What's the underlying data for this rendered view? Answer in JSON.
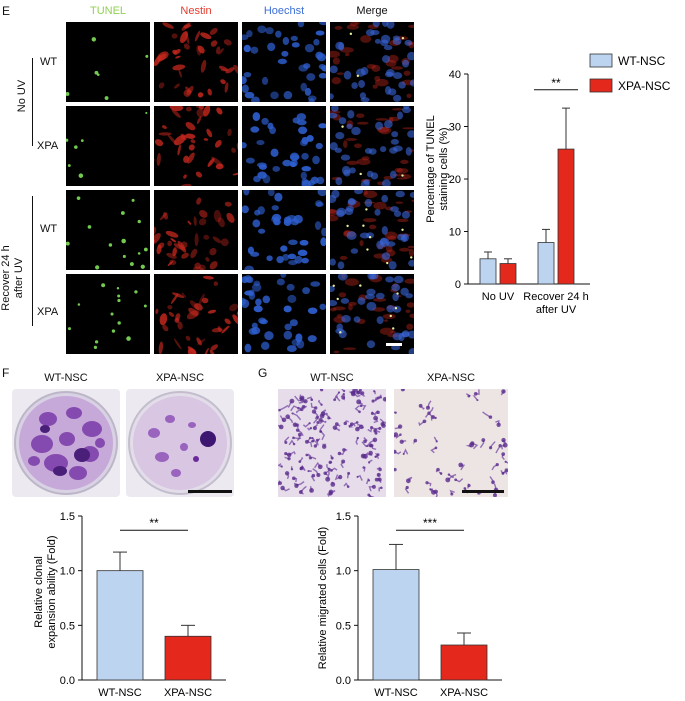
{
  "panels": {
    "e": "E",
    "f": "F",
    "g": "G"
  },
  "micro": {
    "columns": [
      {
        "label": "TUNEL",
        "color": "#8fd14f"
      },
      {
        "label": "Nestin",
        "color": "#e43a2e"
      },
      {
        "label": "Hoechst",
        "color": "#3b6fd6"
      },
      {
        "label": "Merge",
        "color": "#111111"
      }
    ],
    "groups": [
      {
        "label": "No UV",
        "rows": [
          "WT",
          "XPA"
        ]
      },
      {
        "label": "Recover 24 h after UV",
        "label_line1": "Recover 24 h",
        "label_line2": "after UV",
        "rows": [
          "WT",
          "XPA"
        ]
      }
    ]
  },
  "photos_f": {
    "left": "WT-NSC",
    "right": "XPA-NSC"
  },
  "photos_g": {
    "left": "WT-NSC",
    "right": "XPA-NSC"
  },
  "chart_data": [
    {
      "id": "E",
      "type": "bar",
      "categories": [
        "No UV",
        "Recover 24 h after UV"
      ],
      "category_lines": [
        [
          "No UV"
        ],
        [
          "Recover 24 h",
          "after UV"
        ]
      ],
      "series": [
        {
          "name": "WT-NSC",
          "values": [
            4.8,
            7.9
          ],
          "errors": [
            1.3,
            2.5
          ],
          "color": "#bcd4ef"
        },
        {
          "name": "XPA-NSC",
          "values": [
            3.9,
            25.7
          ],
          "errors": [
            0.9,
            7.8
          ],
          "color": "#e4281c"
        }
      ],
      "ylabel": "Percentage of TUNEL staining cells (%)",
      "ylabel_lines": [
        "Percentage of TUNEL",
        "staining cells (%)"
      ],
      "ylim": [
        0,
        40
      ],
      "yticks": [
        0,
        10,
        20,
        30,
        40
      ],
      "significance": [
        {
          "category": 1,
          "text": "**"
        }
      ],
      "legend": "top-right"
    },
    {
      "id": "F",
      "type": "bar",
      "categories": [
        "WT-NSC",
        "XPA-NSC"
      ],
      "values": [
        1.0,
        0.4
      ],
      "errors": [
        0.17,
        0.1
      ],
      "colors": [
        "#bcd4ef",
        "#e4281c"
      ],
      "ylabel": "Relative clonal expansion ability (Fold)",
      "ylabel_lines": [
        "Relative clonal",
        "expansion ability (Fold)"
      ],
      "ylim": [
        0,
        1.5
      ],
      "yticks": [
        "0.0",
        "0.5",
        "1.0",
        "1.5"
      ],
      "significance": "**"
    },
    {
      "id": "G",
      "type": "bar",
      "categories": [
        "WT-NSC",
        "XPA-NSC"
      ],
      "values": [
        1.01,
        0.32
      ],
      "errors": [
        0.23,
        0.11
      ],
      "colors": [
        "#bcd4ef",
        "#e4281c"
      ],
      "ylabel": "Relative migrated cells (Fold)",
      "ylabel_lines": [
        "Relative migrated cells (Fold)"
      ],
      "ylim": [
        0,
        1.5
      ],
      "yticks": [
        "0.0",
        "0.5",
        "1.0",
        "1.5"
      ],
      "significance": "***"
    }
  ]
}
